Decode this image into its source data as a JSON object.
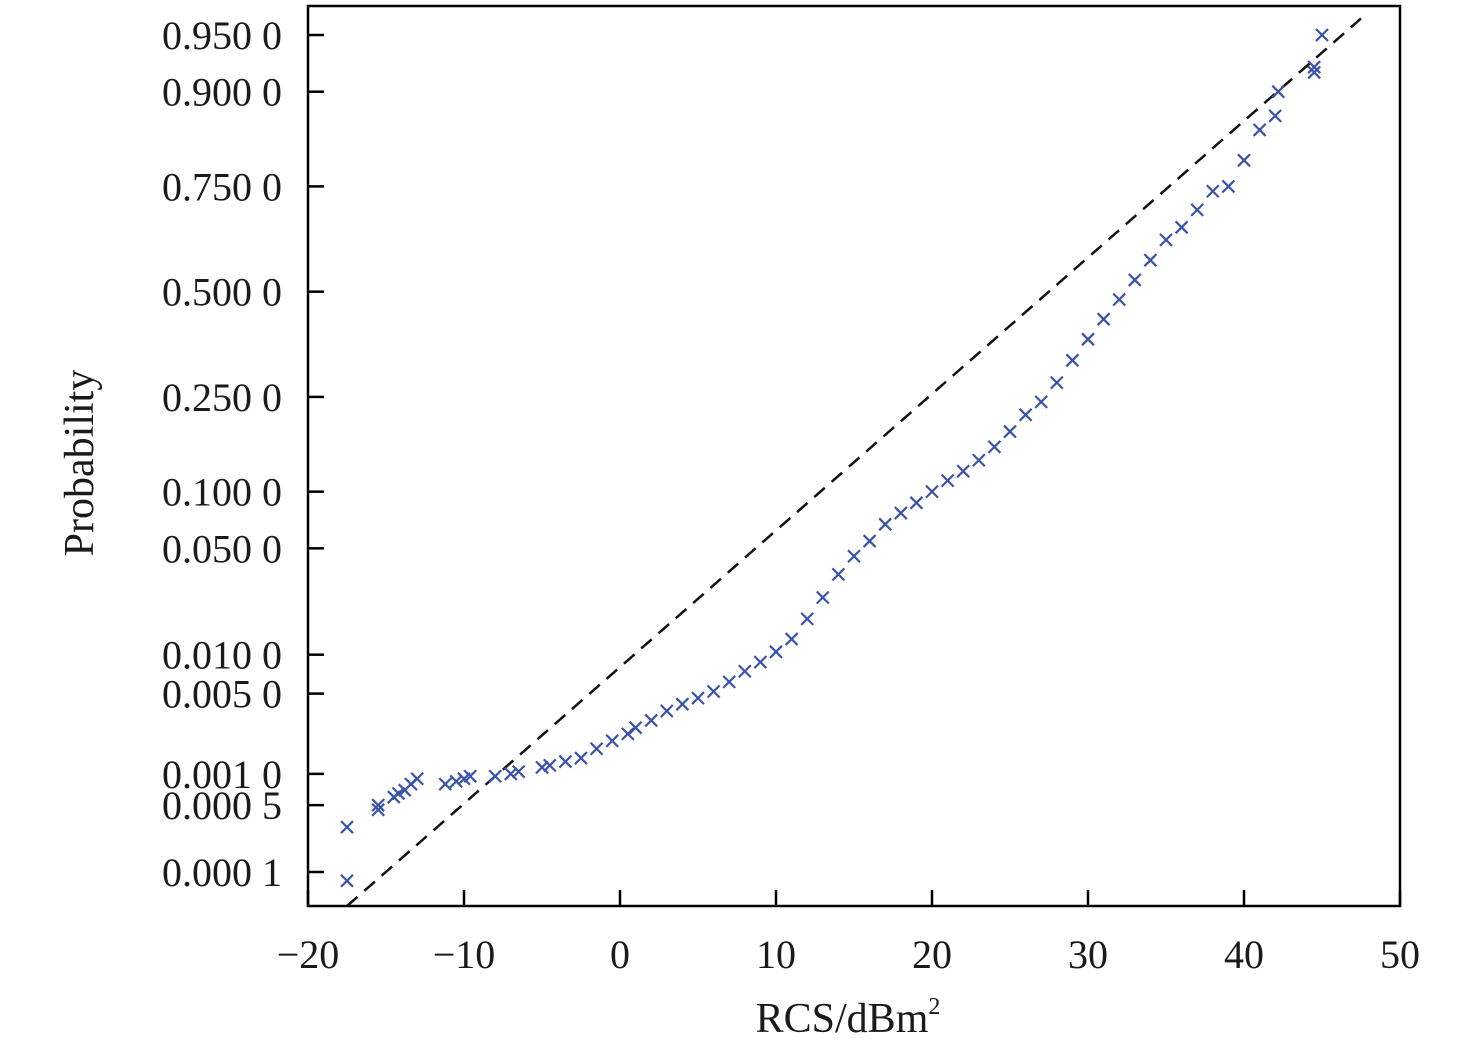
{
  "chart_data": {
    "type": "scatter",
    "title": "",
    "xlabel": "RCS/dBm",
    "xlabel_superscript": "2",
    "ylabel": "Probability",
    "xlim": [
      -20,
      50
    ],
    "x_ticks": [
      -20,
      -10,
      0,
      10,
      20,
      30,
      40,
      50
    ],
    "x_tick_labels": [
      "−20",
      "−10",
      "0",
      "10",
      "20",
      "30",
      "40",
      "50"
    ],
    "y_scale": "normal-probability",
    "y_ticks": [
      0.0001,
      0.0005,
      0.001,
      0.005,
      0.01,
      0.05,
      0.1,
      0.25,
      0.5,
      0.75,
      0.9,
      0.95
    ],
    "y_tick_labels": [
      "0.000 1",
      "0.000 5",
      "0.001 0",
      "0.005 0",
      "0.010 0",
      "0.050 0",
      "0.100 0",
      "0.250 0",
      "0.500 0",
      "0.750 0",
      "0.900 0",
      "0.950 0"
    ],
    "grid": false,
    "legend": "none",
    "colors": {
      "points": "#3a52a8",
      "reference_line": "#111111"
    },
    "series": [
      {
        "kind": "points",
        "marker": "x",
        "points": [
          [
            -17.5,
            8e-05
          ],
          [
            -17.5,
            0.0003
          ],
          [
            -15.5,
            0.00045
          ],
          [
            -15.5,
            0.0005
          ],
          [
            -14.5,
            0.0006
          ],
          [
            -14.2,
            0.00065
          ],
          [
            -13.8,
            0.0007
          ],
          [
            -13.4,
            0.0008
          ],
          [
            -13.0,
            0.0009
          ],
          [
            -11.2,
            0.0008
          ],
          [
            -10.5,
            0.00085
          ],
          [
            -10.0,
            0.0009
          ],
          [
            -9.6,
            0.00095
          ],
          [
            -8.0,
            0.00095
          ],
          [
            -7.0,
            0.001
          ],
          [
            -6.5,
            0.00105
          ],
          [
            -5.0,
            0.00115
          ],
          [
            -4.5,
            0.0012
          ],
          [
            -3.5,
            0.0013
          ],
          [
            -2.5,
            0.0014
          ],
          [
            -1.5,
            0.0017
          ],
          [
            -0.5,
            0.002
          ],
          [
            0.5,
            0.0023
          ],
          [
            1.0,
            0.0026
          ],
          [
            2.0,
            0.003
          ],
          [
            3.0,
            0.0036
          ],
          [
            4.0,
            0.0041
          ],
          [
            5.0,
            0.0046
          ],
          [
            6.0,
            0.0052
          ],
          [
            7.0,
            0.0062
          ],
          [
            8.0,
            0.0075
          ],
          [
            9.0,
            0.0088
          ],
          [
            10.0,
            0.0105
          ],
          [
            11.0,
            0.013
          ],
          [
            12.0,
            0.018
          ],
          [
            13.0,
            0.025
          ],
          [
            14.0,
            0.035
          ],
          [
            15.0,
            0.045
          ],
          [
            16.0,
            0.055
          ],
          [
            17.0,
            0.068
          ],
          [
            18.0,
            0.078
          ],
          [
            19.0,
            0.088
          ],
          [
            20.0,
            0.1
          ],
          [
            21.0,
            0.113
          ],
          [
            22.0,
            0.125
          ],
          [
            23.0,
            0.14
          ],
          [
            24.0,
            0.16
          ],
          [
            25.0,
            0.185
          ],
          [
            26.0,
            0.215
          ],
          [
            27.0,
            0.24
          ],
          [
            28.0,
            0.28
          ],
          [
            29.0,
            0.33
          ],
          [
            30.0,
            0.38
          ],
          [
            31.0,
            0.43
          ],
          [
            32.0,
            0.48
          ],
          [
            33.0,
            0.53
          ],
          [
            34.0,
            0.58
          ],
          [
            35.0,
            0.63
          ],
          [
            36.0,
            0.66
          ],
          [
            37.0,
            0.7
          ],
          [
            38.0,
            0.74
          ],
          [
            39.0,
            0.75
          ],
          [
            40.0,
            0.8
          ],
          [
            41.0,
            0.85
          ],
          [
            42.0,
            0.87
          ],
          [
            42.2,
            0.9
          ],
          [
            44.5,
            0.92
          ],
          [
            44.5,
            0.925
          ],
          [
            45.0,
            0.95
          ]
        ]
      },
      {
        "kind": "reference-line",
        "style": "dashed",
        "points": [
          [
            -17.5,
            4e-05
          ],
          [
            47.5,
            0.96
          ]
        ]
      }
    ]
  }
}
